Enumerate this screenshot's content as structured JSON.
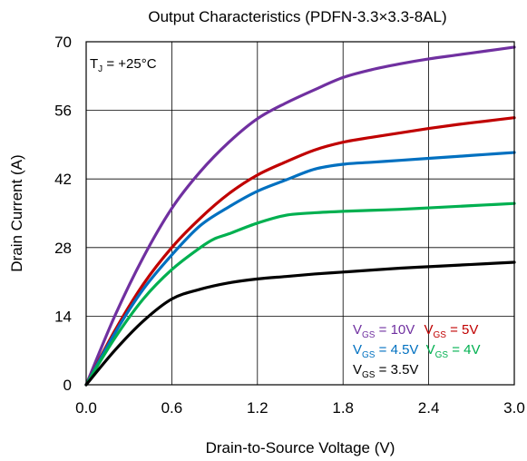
{
  "chart_data": {
    "type": "line",
    "title": "Output Characteristics (PDFN-3.3×3.3-8AL)",
    "xlabel": "Drain-to-Source Voltage (V)",
    "ylabel": "Drain Current (A)",
    "xlim": [
      0,
      3.0
    ],
    "ylim": [
      0,
      70
    ],
    "xticks": [
      "0.0",
      "0.6",
      "1.2",
      "1.8",
      "2.4",
      "3.0"
    ],
    "yticks": [
      "0",
      "14",
      "28",
      "42",
      "56",
      "70"
    ],
    "grid": true,
    "annotation": {
      "main": "T",
      "sub": "J",
      "rest": " = +25°C"
    },
    "legend_placement": "bottom-right",
    "series": [
      {
        "name": "V_GS = 10V",
        "color": "#7030a0",
        "x": [
          0,
          0.2,
          0.4,
          0.6,
          0.8,
          1.0,
          1.2,
          1.4,
          1.6,
          1.8,
          2.0,
          2.2,
          2.4,
          2.6,
          2.8,
          3.0
        ],
        "y": [
          0,
          14,
          26,
          36,
          43.5,
          49.5,
          54.3,
          57.5,
          60.2,
          62.7,
          64.3,
          65.5,
          66.5,
          67.3,
          68.1,
          68.9
        ]
      },
      {
        "name": "V_GS = 5V",
        "color": "#c00000",
        "x": [
          0,
          0.2,
          0.4,
          0.6,
          0.8,
          1.0,
          1.2,
          1.4,
          1.6,
          1.8,
          2.0,
          2.2,
          2.4,
          2.6,
          2.8,
          3.0
        ],
        "y": [
          0,
          11,
          20.5,
          28,
          34,
          39,
          42.8,
          45.5,
          47.9,
          49.5,
          50.5,
          51.4,
          52.3,
          53.1,
          53.8,
          54.5
        ]
      },
      {
        "name": "V_GS = 4.5V",
        "color": "#0070c0",
        "x": [
          0,
          0.2,
          0.4,
          0.6,
          0.8,
          1.0,
          1.2,
          1.4,
          1.6,
          1.8,
          2.0,
          2.2,
          2.4,
          2.6,
          2.8,
          3.0
        ],
        "y": [
          0,
          10.5,
          19.5,
          26.5,
          32.5,
          36.3,
          39.5,
          41.8,
          44,
          45,
          45.4,
          45.8,
          46.2,
          46.6,
          47,
          47.4
        ]
      },
      {
        "name": "V_GS = 4V",
        "color": "#00b050",
        "x": [
          0,
          0.2,
          0.4,
          0.6,
          0.8,
          0.9,
          1.0,
          1.2,
          1.4,
          1.6,
          1.8,
          2.0,
          2.2,
          2.4,
          2.6,
          2.8,
          3.0
        ],
        "y": [
          0,
          9.5,
          17.5,
          23.5,
          28,
          29.8,
          30.8,
          33,
          34.6,
          35.1,
          35.4,
          35.6,
          35.8,
          36.1,
          36.4,
          36.7,
          37
        ]
      },
      {
        "name": "V_GS = 3.5V",
        "color": "#000000",
        "x": [
          0,
          0.2,
          0.4,
          0.6,
          0.8,
          1.0,
          1.2,
          1.4,
          1.6,
          1.8,
          2.0,
          2.2,
          2.4,
          2.6,
          2.8,
          3.0
        ],
        "y": [
          0,
          7,
          13,
          17.5,
          19.5,
          20.8,
          21.6,
          22.1,
          22.6,
          23,
          23.4,
          23.8,
          24.1,
          24.4,
          24.7,
          25
        ]
      }
    ]
  },
  "legend": {
    "row1": [
      {
        "main": "V",
        "sub": "GS",
        "rest": " = 10V",
        "color": "#7030a0"
      },
      {
        "main": "V",
        "sub": "GS",
        "rest": " = 5V",
        "color": "#c00000"
      }
    ],
    "row2": [
      {
        "main": "V",
        "sub": "GS",
        "rest": " = 4.5V",
        "color": "#0070c0"
      },
      {
        "main": "V",
        "sub": "GS",
        "rest": " = 4V",
        "color": "#00b050"
      }
    ],
    "row3": [
      {
        "main": "V",
        "sub": "GS",
        "rest": " = 3.5V",
        "color": "#000000"
      }
    ]
  }
}
